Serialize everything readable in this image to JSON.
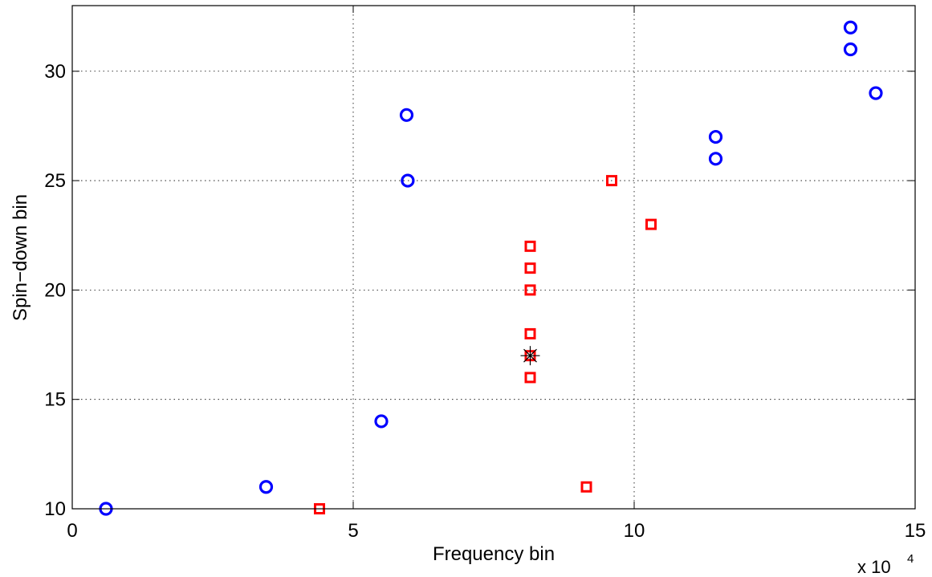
{
  "chart_data": {
    "type": "scatter",
    "xlabel": "Frequency bin",
    "ylabel": "Spin−down bin",
    "x_multiplier": "x 10",
    "x_multiplier_exp": "4",
    "xlim": [
      0,
      15
    ],
    "ylim": [
      10,
      33
    ],
    "xticks": [
      0,
      5,
      10,
      15
    ],
    "yticks": [
      10,
      15,
      20,
      25,
      30
    ],
    "grid": true,
    "colors": {
      "circles": "#0000ff",
      "squares": "#ff0000",
      "star": "#000000"
    },
    "series": [
      {
        "marker": "circle",
        "points": [
          [
            0.6,
            10
          ],
          [
            3.45,
            11
          ],
          [
            5.5,
            14
          ],
          [
            5.95,
            28
          ],
          [
            5.97,
            25
          ],
          [
            11.45,
            27
          ],
          [
            11.45,
            26
          ],
          [
            13.85,
            32
          ],
          [
            13.85,
            31
          ],
          [
            14.3,
            29
          ]
        ]
      },
      {
        "marker": "square",
        "points": [
          [
            4.4,
            10
          ],
          [
            8.15,
            22
          ],
          [
            8.15,
            21
          ],
          [
            8.15,
            20
          ],
          [
            8.15,
            18
          ],
          [
            8.15,
            17
          ],
          [
            8.15,
            16
          ],
          [
            9.15,
            11
          ],
          [
            9.6,
            25
          ],
          [
            10.3,
            23
          ]
        ]
      },
      {
        "marker": "star",
        "points": [
          [
            8.15,
            17
          ]
        ]
      }
    ]
  }
}
